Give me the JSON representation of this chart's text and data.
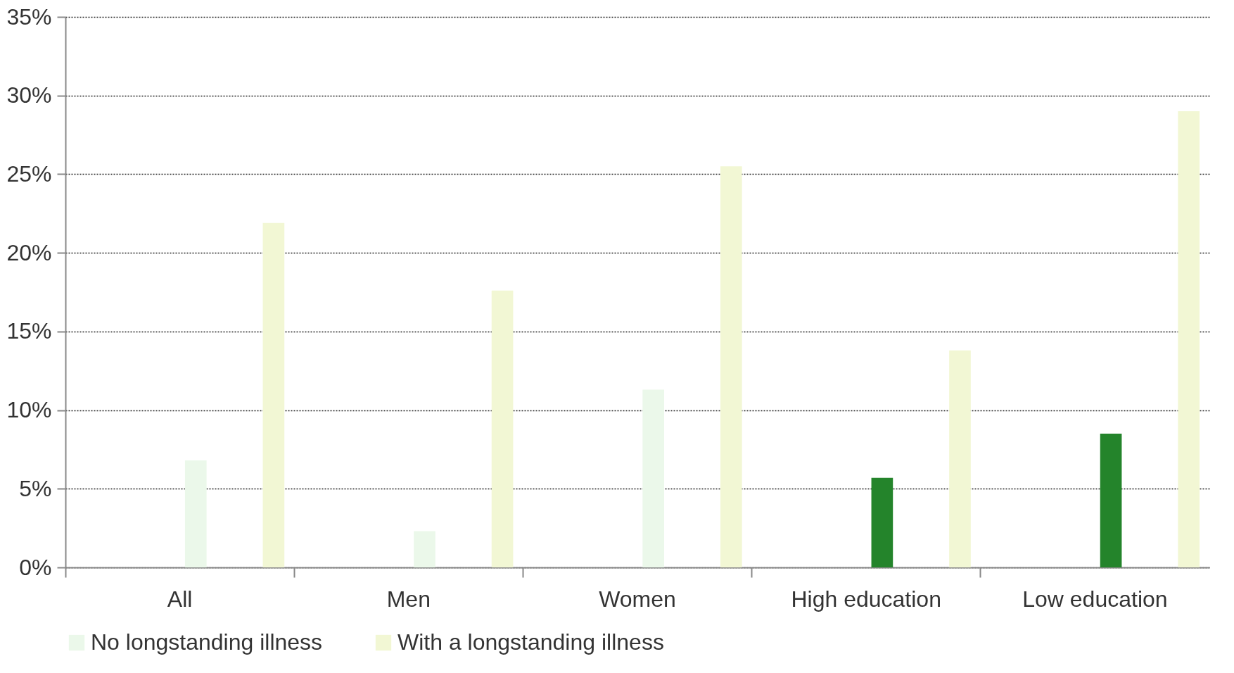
{
  "chart_data": {
    "type": "bar",
    "categories": [
      "All",
      "Men",
      "Women",
      "High education",
      "Low education"
    ],
    "series": [
      {
        "name": "No longstanding illness",
        "color": "#ebf8ea",
        "colors": [
          "#ebf8ea",
          "#ebf8ea",
          "#ebf8ea",
          "#24842b",
          "#24842b"
        ],
        "values": [
          6.8,
          2.3,
          11.3,
          5.7,
          8.5
        ]
      },
      {
        "name": "With a longstanding illness",
        "color": "#f2f7d4",
        "values": [
          21.9,
          17.6,
          25.5,
          13.8,
          29.0
        ]
      }
    ],
    "ylim": [
      0,
      35
    ],
    "yticks": [
      {
        "value": 0,
        "label": "0%"
      },
      {
        "value": 5,
        "label": "5%"
      },
      {
        "value": 10,
        "label": "10%"
      },
      {
        "value": 15,
        "label": "15%"
      },
      {
        "value": 20,
        "label": "20%"
      },
      {
        "value": 25,
        "label": "25%"
      },
      {
        "value": 30,
        "label": "30%"
      },
      {
        "value": 35,
        "label": "35%"
      }
    ],
    "grid": "y",
    "legend": "bottom"
  }
}
